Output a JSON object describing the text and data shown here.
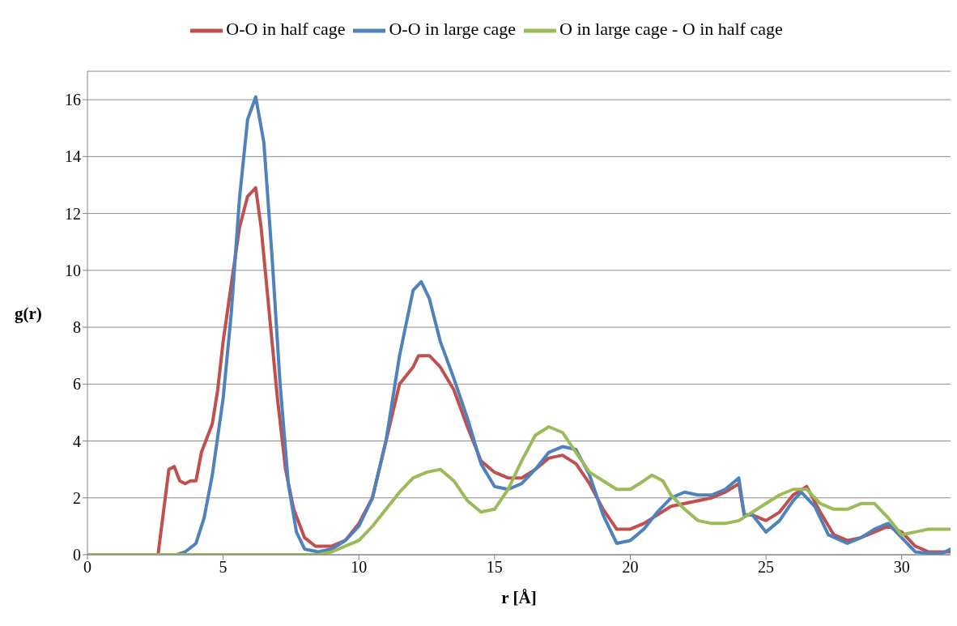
{
  "chart_data": {
    "type": "line",
    "xlabel": "r [Å]",
    "ylabel": "g(r)",
    "xlim": [
      0,
      31.8
    ],
    "xticks": [
      0,
      5,
      10,
      15,
      20,
      25,
      30
    ],
    "ylim": [
      0,
      17
    ],
    "yticks": [
      0,
      2,
      4,
      6,
      8,
      10,
      12,
      14,
      16
    ],
    "grid": "y",
    "legend": "top",
    "marker": "none",
    "line_style": "solid",
    "series": [
      {
        "name": "O-O in half cage",
        "color": "#c0504d",
        "x": [
          0,
          2.6,
          2.8,
          3.0,
          3.2,
          3.4,
          3.6,
          3.8,
          4.0,
          4.2,
          4.4,
          4.6,
          4.8,
          5.0,
          5.3,
          5.6,
          5.9,
          6.2,
          6.4,
          6.7,
          7.0,
          7.3,
          7.6,
          8.0,
          8.4,
          9.0,
          9.5,
          10.0,
          10.5,
          11.0,
          11.5,
          12.0,
          12.2,
          12.6,
          13.0,
          13.5,
          14.0,
          14.5,
          15.0,
          15.5,
          16.0,
          16.5,
          17.0,
          17.5,
          18.0,
          18.5,
          19.0,
          19.5,
          20.0,
          20.5,
          21.0,
          21.5,
          22.0,
          22.5,
          23.0,
          23.5,
          24.0,
          24.2,
          24.5,
          25.0,
          25.5,
          26.0,
          26.5,
          27.0,
          27.5,
          28.0,
          28.5,
          29.0,
          29.5,
          30.0,
          30.5,
          31.0,
          31.8
        ],
        "values": [
          0,
          0,
          1.5,
          3.0,
          3.1,
          2.6,
          2.5,
          2.6,
          2.6,
          3.6,
          4.1,
          4.6,
          5.8,
          7.5,
          9.5,
          11.5,
          12.6,
          12.9,
          11.5,
          8.5,
          5.5,
          3.0,
          1.6,
          0.6,
          0.3,
          0.3,
          0.5,
          1.1,
          2.0,
          4.0,
          6.0,
          6.6,
          7.0,
          7.0,
          6.6,
          5.8,
          4.5,
          3.3,
          2.9,
          2.7,
          2.7,
          3.0,
          3.4,
          3.5,
          3.2,
          2.5,
          1.6,
          0.9,
          0.9,
          1.1,
          1.4,
          1.7,
          1.8,
          1.9,
          2.0,
          2.2,
          2.5,
          1.4,
          1.4,
          1.2,
          1.5,
          2.1,
          2.4,
          1.5,
          0.7,
          0.5,
          0.6,
          0.8,
          1.0,
          0.8,
          0.3,
          0.1,
          0.1
        ]
      },
      {
        "name": "O-O in large cage",
        "color": "#4f81bd",
        "x": [
          0,
          3.3,
          3.6,
          4.0,
          4.3,
          4.6,
          5.0,
          5.3,
          5.6,
          5.9,
          6.2,
          6.5,
          6.8,
          7.1,
          7.4,
          7.7,
          8.0,
          8.5,
          9.0,
          9.5,
          10.0,
          10.5,
          11.0,
          11.5,
          12.0,
          12.3,
          12.6,
          13.0,
          13.5,
          14.0,
          14.5,
          15.0,
          15.5,
          16.0,
          16.5,
          17.0,
          17.5,
          18.0,
          18.5,
          19.0,
          19.5,
          20.0,
          20.5,
          21.0,
          21.5,
          22.0,
          22.5,
          23.0,
          23.5,
          24.0,
          24.2,
          24.5,
          25.0,
          25.5,
          26.0,
          26.3,
          26.8,
          27.3,
          28.0,
          28.5,
          29.0,
          29.5,
          30.0,
          30.5,
          31.0,
          31.5,
          31.8
        ],
        "values": [
          0,
          0,
          0.1,
          0.4,
          1.3,
          2.8,
          5.5,
          8.5,
          12.5,
          15.3,
          16.1,
          14.5,
          10.5,
          6.0,
          2.5,
          0.8,
          0.2,
          0.1,
          0.2,
          0.5,
          1.0,
          2.0,
          4.0,
          7.0,
          9.3,
          9.6,
          9.0,
          7.5,
          6.2,
          4.8,
          3.2,
          2.4,
          2.3,
          2.5,
          3.0,
          3.6,
          3.8,
          3.7,
          2.8,
          1.4,
          0.4,
          0.5,
          0.9,
          1.5,
          2.0,
          2.2,
          2.1,
          2.1,
          2.3,
          2.7,
          1.4,
          1.4,
          0.8,
          1.2,
          1.9,
          2.2,
          1.7,
          0.7,
          0.4,
          0.6,
          0.9,
          1.1,
          0.6,
          0.1,
          0.05,
          0.05,
          0.2
        ]
      },
      {
        "name": "O in large cage - O in half cage",
        "color": "#9bbb59",
        "x": [
          0,
          8.5,
          9.0,
          9.5,
          10.0,
          10.5,
          11.0,
          11.5,
          12.0,
          12.5,
          13.0,
          13.5,
          14.0,
          14.5,
          15.0,
          15.5,
          16.0,
          16.5,
          17.0,
          17.5,
          18.0,
          18.5,
          19.0,
          19.5,
          20.0,
          20.5,
          20.8,
          21.2,
          21.5,
          22.0,
          22.5,
          23.0,
          23.5,
          24.0,
          24.5,
          25.0,
          25.5,
          26.0,
          26.5,
          27.0,
          27.5,
          28.0,
          28.5,
          29.0,
          29.5,
          30.0,
          30.5,
          31.0,
          31.8
        ],
        "values": [
          0,
          0,
          0.1,
          0.3,
          0.5,
          1.0,
          1.6,
          2.2,
          2.7,
          2.9,
          3.0,
          2.6,
          1.9,
          1.5,
          1.6,
          2.3,
          3.3,
          4.2,
          4.5,
          4.3,
          3.6,
          2.9,
          2.6,
          2.3,
          2.3,
          2.6,
          2.8,
          2.6,
          2.1,
          1.6,
          1.2,
          1.1,
          1.1,
          1.2,
          1.5,
          1.8,
          2.1,
          2.3,
          2.3,
          1.8,
          1.6,
          1.6,
          1.8,
          1.8,
          1.3,
          0.7,
          0.8,
          0.9,
          0.9
        ]
      }
    ]
  }
}
